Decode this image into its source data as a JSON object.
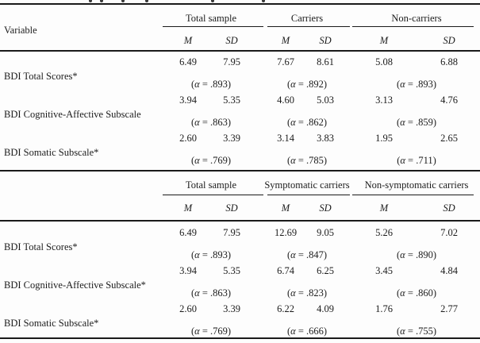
{
  "page": {
    "background": "#fdfdfd",
    "text_color": "#1c1c1c",
    "rule_color": "#1a1a1a"
  },
  "variable_header": "Variable",
  "columns": {
    "m_label": "M",
    "sd_label": "SD"
  },
  "sections": [
    {
      "groups": [
        "Total sample",
        "Carriers",
        "Non-carriers"
      ],
      "rows": [
        {
          "label": "BDI Total Scores*",
          "cells": [
            "6.49",
            "7.95",
            "7.67",
            "8.61",
            "5.08",
            "6.88"
          ],
          "alphas": [
            "(α = .893)",
            "(α = .892)",
            "(α = .893)"
          ]
        },
        {
          "label": "BDI Cognitive-Affective Subscale",
          "cells": [
            "3.94",
            "5.35",
            "4.60",
            "5.03",
            "3.13",
            "4.76"
          ],
          "alphas": [
            "(α = .863)",
            "(α = .862)",
            "(α = .859)"
          ]
        },
        {
          "label": "BDI Somatic Subscale*",
          "cells": [
            "2.60",
            "3.39",
            "3.14",
            "3.83",
            "1.95",
            "2.65"
          ],
          "alphas": [
            "(α = .769)",
            "(α = .785)",
            "(α = .711)"
          ]
        }
      ]
    },
    {
      "groups": [
        "Total sample",
        "Symptomatic carriers",
        "Non-symptomatic carriers"
      ],
      "rows": [
        {
          "label": "BDI Total Scores*",
          "cells": [
            "6.49",
            "7.95",
            "12.69",
            "9.05",
            "5.26",
            "7.02"
          ],
          "alphas": [
            "(α = .893)",
            "(α = .847)",
            "(α = .890)"
          ]
        },
        {
          "label": "BDI Cognitive-Affective Subscale*",
          "cells": [
            "3.94",
            "5.35",
            "6.74",
            "6.25",
            "3.45",
            "4.84"
          ],
          "alphas": [
            "(α = .863)",
            "(α = .823)",
            "(α = .860)"
          ]
        },
        {
          "label": "BDI Somatic Subscale*",
          "cells": [
            "2.60",
            "3.39",
            "6.22",
            "4.09",
            "1.76",
            "2.77"
          ],
          "alphas": [
            "(α = .769)",
            "(α = .666)",
            "(α = .755)"
          ]
        }
      ]
    }
  ]
}
